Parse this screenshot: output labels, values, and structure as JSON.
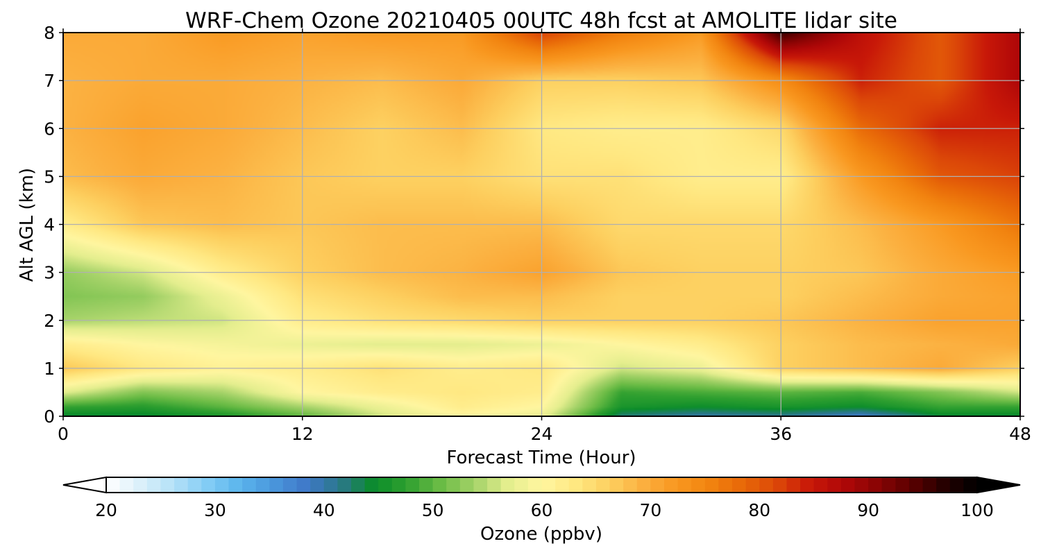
{
  "chart_data": {
    "type": "heatmap",
    "title": "WRF-Chem Ozone  20210405 00UTC 48h fcst at AMOLITE lidar site",
    "xlabel": "Forecast Time (Hour)",
    "ylabel": "Alt AGL (km)",
    "xlim": [
      0,
      48
    ],
    "ylim": [
      0,
      8
    ],
    "xticks": [
      "0",
      "12",
      "24",
      "36",
      "48"
    ],
    "yticks": [
      "0",
      "1",
      "2",
      "3",
      "4",
      "5",
      "6",
      "7",
      "8"
    ],
    "grid": true,
    "x": [
      0,
      4,
      8,
      12,
      16,
      20,
      24,
      28,
      32,
      36,
      40,
      44,
      48
    ],
    "y": [
      0,
      0.2,
      0.5,
      1,
      1.5,
      2,
      2.5,
      3,
      4,
      5,
      6,
      7,
      8
    ],
    "z": [
      [
        44,
        44,
        46,
        50,
        56,
        60,
        58,
        42,
        40,
        41,
        38,
        44,
        44
      ],
      [
        48,
        47,
        50,
        54,
        58,
        62,
        60,
        46,
        45,
        46,
        45,
        48,
        48
      ],
      [
        57,
        52,
        54,
        60,
        62,
        63,
        62,
        48,
        49,
        50,
        49,
        52,
        56
      ],
      [
        67,
        63,
        61,
        62,
        64,
        62,
        63,
        56,
        58,
        66,
        68,
        70,
        66
      ],
      [
        62,
        60,
        59,
        58,
        57,
        57,
        58,
        60,
        62,
        66,
        68,
        69,
        70
      ],
      [
        54,
        55,
        56,
        62,
        64,
        65,
        66,
        66,
        66,
        67,
        69,
        71,
        71
      ],
      [
        52,
        53,
        58,
        64,
        66,
        68,
        68,
        66,
        66,
        66,
        68,
        70,
        71
      ],
      [
        53,
        56,
        62,
        66,
        68,
        69,
        71,
        67,
        66,
        66,
        67,
        70,
        72
      ],
      [
        62,
        67,
        68,
        67,
        68,
        68,
        68,
        65,
        65,
        65,
        68,
        72,
        77
      ],
      [
        68,
        70,
        69,
        67,
        66,
        66,
        64,
        64,
        62,
        62,
        72,
        80,
        82
      ],
      [
        69,
        71,
        70,
        68,
        66,
        68,
        63,
        62,
        62,
        65,
        78,
        84,
        84
      ],
      [
        69,
        70,
        70,
        69,
        68,
        70,
        66,
        66,
        67,
        74,
        84,
        80,
        88
      ],
      [
        70,
        70,
        72,
        71,
        72,
        72,
        82,
        76,
        72,
        96,
        86,
        80,
        88
      ]
    ],
    "colorbar": {
      "label": "Ozone  (ppbv)",
      "min": 20,
      "max": 100,
      "ticks": [
        "20",
        "30",
        "40",
        "50",
        "60",
        "70",
        "80",
        "90",
        "100"
      ],
      "extend": "both",
      "colors": [
        "#ffffff",
        "#dcf0fa",
        "#b4e1f7",
        "#84cdf5",
        "#5ab4ec",
        "#4a96dc",
        "#3f78c8",
        "#2a7888",
        "#0a8c2a",
        "#30a030",
        "#6cbc46",
        "#a4d268",
        "#e4ee8e",
        "#fff6a0",
        "#ffe882",
        "#fdd060",
        "#fbb040",
        "#f99820",
        "#f28410",
        "#e86808",
        "#dc4808",
        "#c81808",
        "#b00808",
        "#8a0404",
        "#5c0000",
        "#260000",
        "#000000"
      ]
    }
  }
}
